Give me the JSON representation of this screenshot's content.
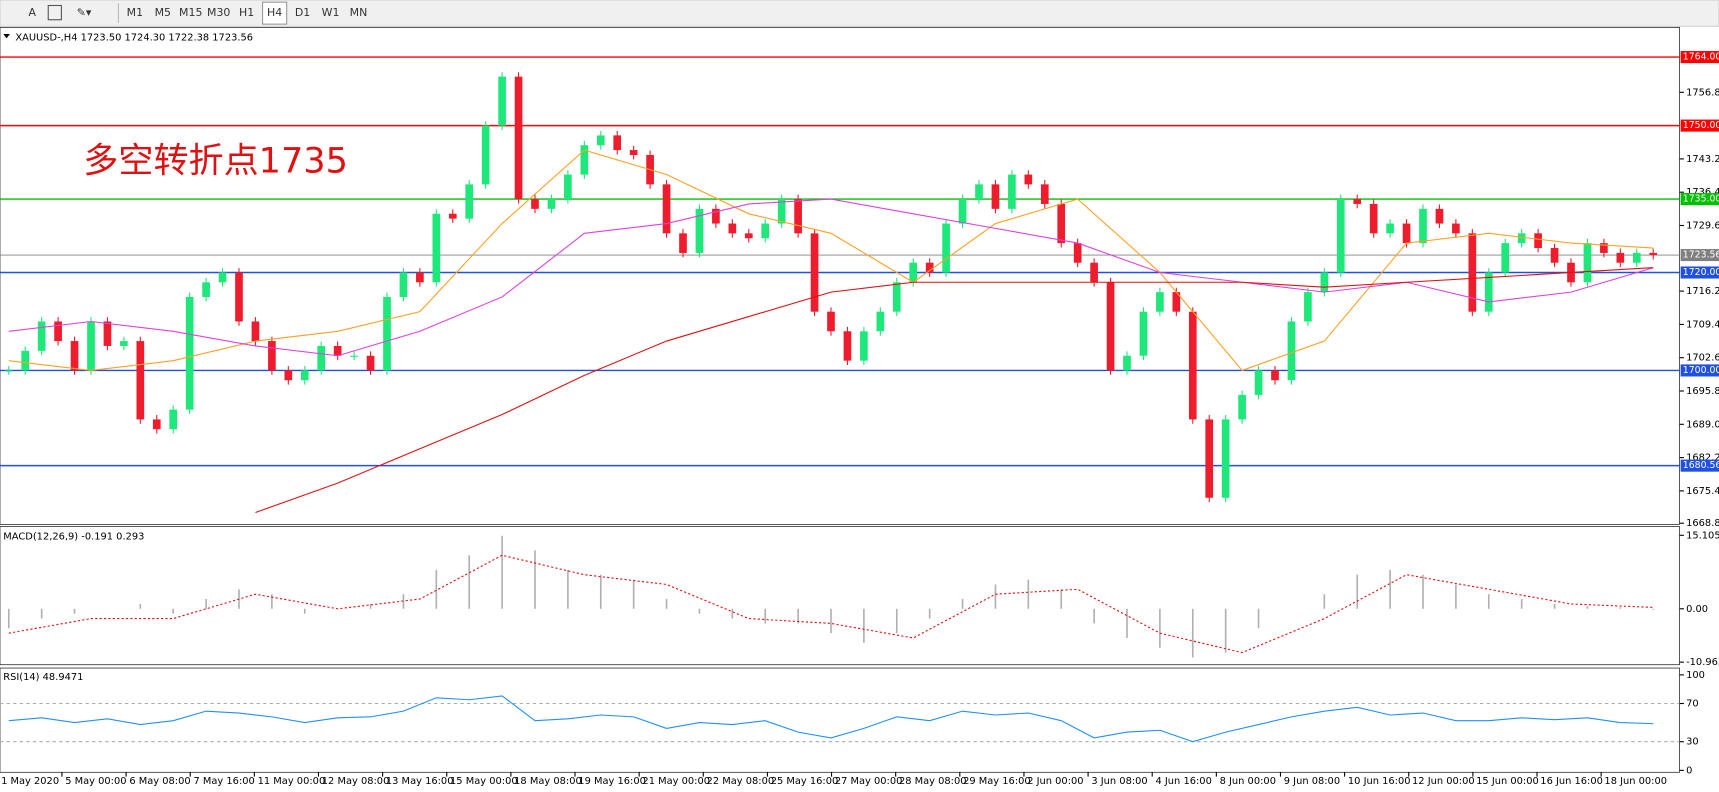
{
  "toolbar": {
    "timeframes": [
      "M1",
      "M5",
      "M15",
      "M30",
      "H1",
      "H4",
      "D1",
      "W1",
      "MN"
    ],
    "active": 5
  },
  "main": {
    "header": "XAUUSD-,H4  1723.50 1724.30 1722.38 1723.56",
    "annotation": "多空转折点1735",
    "ylim": [
      1668.57,
      1770.05
    ],
    "price_ticks": [
      {
        "value": 1756.8,
        "label": "1756.80"
      },
      {
        "value": 1743.2,
        "label": "1743.20"
      },
      {
        "value": 1736.4,
        "label": "1736.40"
      },
      {
        "value": 1729.6,
        "label": "1729.60"
      },
      {
        "value": 1716.2,
        "label": "1716.20"
      },
      {
        "value": 1709.4,
        "label": "1709.40"
      },
      {
        "value": 1702.6,
        "label": "1702.60"
      },
      {
        "value": 1695.8,
        "label": "1695.80"
      },
      {
        "value": 1689,
        "label": "1689.00"
      },
      {
        "value": 1682.2,
        "label": "1682.20"
      },
      {
        "value": 1675.4,
        "label": "1675.40"
      },
      {
        "value": 1668.8,
        "label": "1668.80"
      }
    ],
    "levels": [
      {
        "value": 1764,
        "label": "1764.00",
        "color": "#ff0000"
      },
      {
        "value": 1750,
        "label": "1750.00",
        "color": "#ff0000"
      },
      {
        "value": 1735,
        "label": "1735.00",
        "color": "#00c000"
      },
      {
        "value": 1723.56,
        "label": "1723.56",
        "color": "#808080"
      },
      {
        "value": 1720,
        "label": "1720.00",
        "color": "#2050e0"
      },
      {
        "value": 1700,
        "label": "1700.00",
        "color": "#2050e0"
      },
      {
        "value": 1680.56,
        "label": "1680.56",
        "color": "#2050e0"
      }
    ],
    "candles": {
      "up_color": "#1ee87a",
      "down_color": "#ee1c2c",
      "closes": [
        1700,
        1704,
        1710,
        1706,
        1700,
        1710,
        1705,
        1706,
        1690,
        1688,
        1692,
        1715,
        1718,
        1720,
        1710,
        1706,
        1700,
        1698,
        1700,
        1705,
        1703,
        1703,
        1700,
        1715,
        1720,
        1718,
        1732,
        1731,
        1738,
        1750,
        1760,
        1735,
        1733,
        1735,
        1740,
        1746,
        1748,
        1745,
        1744,
        1738,
        1728,
        1724,
        1733,
        1730,
        1728,
        1727,
        1730,
        1735,
        1728,
        1712,
        1708,
        1702,
        1708,
        1712,
        1718,
        1722,
        1720,
        1730,
        1735,
        1738,
        1733,
        1740,
        1738,
        1734,
        1726,
        1722,
        1718,
        1700,
        1703,
        1712,
        1716,
        1712,
        1690,
        1674,
        1690,
        1695,
        1700,
        1698,
        1710,
        1716,
        1720,
        1735,
        1734,
        1728,
        1730,
        1726,
        1733,
        1730,
        1728,
        1712,
        1720,
        1726,
        1728,
        1725,
        1722,
        1718,
        1726,
        1724,
        1722,
        1724,
        1723.56
      ]
    },
    "ma": [
      {
        "color": "#ffa020",
        "values": [
          1702,
          1700,
          1702,
          1706,
          1708,
          1712,
          1730,
          1745,
          1740,
          1732,
          1728,
          1718,
          1730,
          1735,
          1720,
          1700,
          1706,
          1726,
          1728,
          1726,
          1725
        ]
      },
      {
        "color": "#e040e0",
        "values": [
          1708,
          1710,
          1708,
          1705,
          1703,
          1708,
          1715,
          1728,
          1730,
          1734,
          1735,
          1732,
          1729,
          1726,
          1720,
          1718,
          1716,
          1718,
          1714,
          1716,
          1721
        ]
      },
      {
        "color": "#e01010",
        "values": [
          null,
          null,
          null,
          1671,
          1677,
          1684,
          1691,
          1699,
          1706,
          1711,
          1716,
          1718,
          1718,
          1718,
          1718,
          1718,
          1717,
          1718,
          1719,
          1720,
          1721
        ]
      }
    ]
  },
  "time_axis": {
    "labels": [
      "1 May 2020",
      "5 May 00:00",
      "6 May 08:00",
      "7 May 16:00",
      "11 May 00:00",
      "12 May 08:00",
      "13 May 16:00",
      "15 May 00:00",
      "18 May 08:00",
      "19 May 16:00",
      "21 May 00:00",
      "22 May 08:00",
      "25 May 16:00",
      "27 May 00:00",
      "28 May 08:00",
      "29 May 16:00",
      "2 Jun 00:00",
      "3 Jun 08:00",
      "4 Jun 16:00",
      "8 Jun 00:00",
      "9 Jun 08:00",
      "10 Jun 16:00",
      "12 Jun 00:00",
      "15 Jun 00:00",
      "16 Jun 16:00",
      "18 Jun 00:00"
    ]
  },
  "macd": {
    "label": "MACD(12,26,9) -0.191 0.293",
    "ylim": [
      -11.5,
      16.68
    ],
    "ticks": [
      15.105,
      {
        "value": 0,
        "label": "0.00"
      },
      -10.963
    ],
    "histogram_color": "#b0b0b0",
    "histogram": [
      -4,
      -2,
      -1,
      0,
      1,
      -1,
      2,
      4,
      3,
      -1,
      0,
      1,
      3,
      8,
      11,
      15,
      12,
      8,
      7,
      6,
      2,
      -1,
      -2,
      -3,
      -3,
      -5,
      -7,
      -5,
      -2,
      2,
      5,
      6,
      4,
      -3,
      -6,
      -8,
      -10,
      -9,
      -4,
      0,
      3,
      7,
      8,
      7,
      5,
      3,
      2,
      1,
      0.5,
      0.3,
      -0.2
    ],
    "signal_color": "#e01010",
    "signal": [
      -5,
      -2,
      -2,
      3,
      0,
      2,
      11,
      7,
      5,
      -2,
      -3,
      -6,
      3,
      4,
      -5,
      -9,
      -2,
      7,
      4,
      1,
      0.293
    ]
  },
  "rsi": {
    "label": "RSI(14) 48.9471",
    "ylim": [
      -2,
      106
    ],
    "ticks": [
      100,
      70,
      30,
      0
    ],
    "color": "#1e90ff",
    "values": [
      52,
      55,
      50,
      54,
      48,
      52,
      62,
      60,
      56,
      50,
      55,
      56,
      62,
      76,
      74,
      78,
      52,
      54,
      58,
      56,
      44,
      50,
      48,
      52,
      40,
      34,
      44,
      56,
      52,
      62,
      58,
      60,
      52,
      34,
      40,
      42,
      30,
      40,
      48,
      56,
      62,
      66,
      58,
      60,
      52,
      52,
      55,
      53,
      55,
      50,
      48.9471
    ]
  }
}
